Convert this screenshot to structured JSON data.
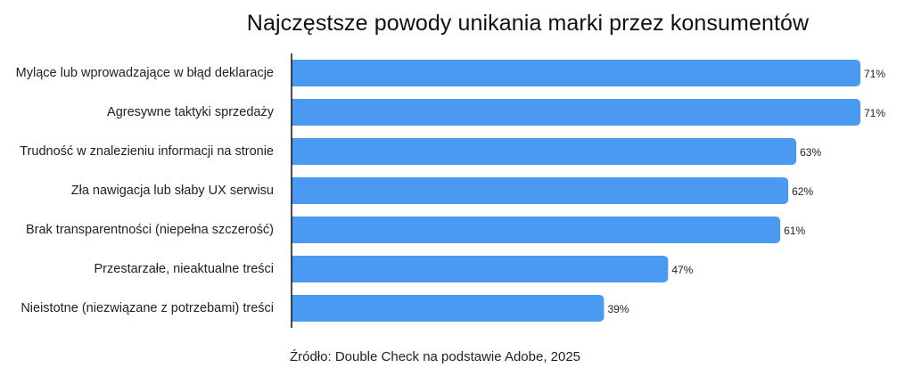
{
  "chart_data": {
    "type": "bar",
    "orientation": "horizontal",
    "title": "Najczęstsze powody unikania marki przez konsumentów",
    "categories": [
      "Mylące lub wprowadzające w błąd deklaracje",
      "Agresywne taktyki sprzedaży",
      "Trudność w znalezieniu informacji na stronie",
      "Zła nawigacja lub słaby UX serwisu",
      "Brak transparentności (niepełna szczerość)",
      "Przestarzałe, nieaktualne treści",
      "Nieistotne (niezwiązane z potrzebami) treści"
    ],
    "values": [
      71,
      71,
      63,
      62,
      61,
      47,
      39
    ],
    "value_labels": [
      "71%",
      "71%",
      "63%",
      "62%",
      "61%",
      "47%",
      "39%"
    ],
    "xlim": [
      0,
      71
    ],
    "bar_color": "#4a9af2",
    "axis_color": "#111111",
    "grid": false,
    "legend": "none"
  },
  "source": "Źródło: Double Check na podstawie Adobe, 2025"
}
